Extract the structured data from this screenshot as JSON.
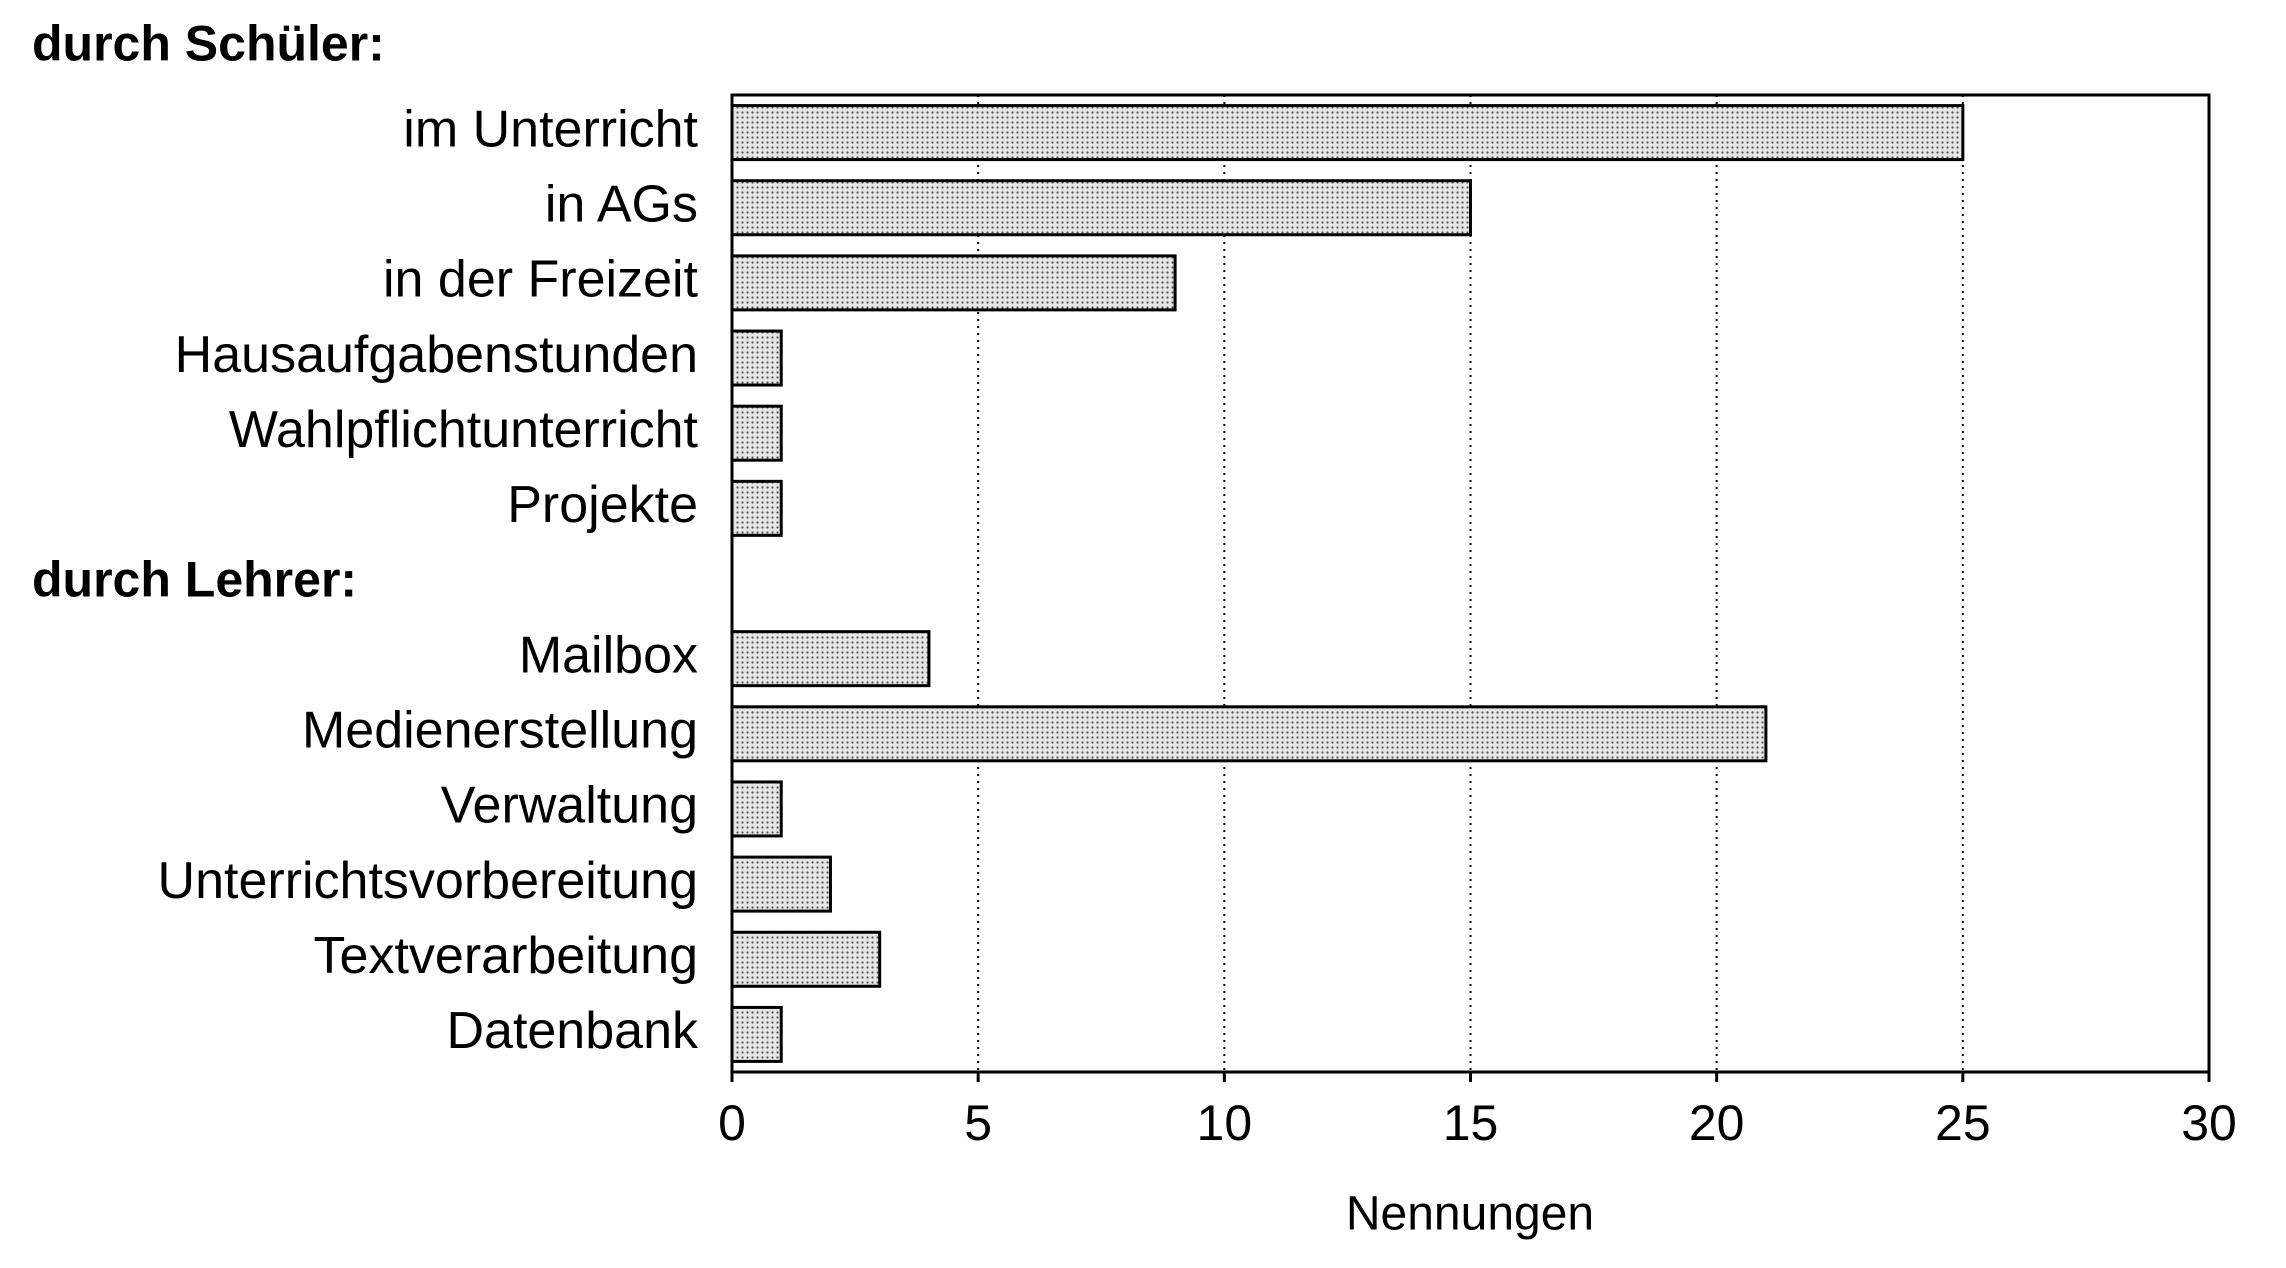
{
  "chart_data": {
    "type": "bar",
    "orientation": "horizontal",
    "groups": [
      {
        "title": "durch Schüler:",
        "categories": [
          "im Unterricht",
          "in AGs",
          "in der Freizeit",
          "Hausaufgabenstunden",
          "Wahlpflichtunterricht",
          "Projekte"
        ],
        "values": [
          25,
          15,
          9,
          1,
          1,
          1
        ]
      },
      {
        "title": "durch Lehrer:",
        "categories": [
          "Mailbox",
          "Medienerstellung",
          "Verwaltung",
          "Unterrichtsvorbereitung",
          "Textverarbeitung",
          "Datenbank"
        ],
        "values": [
          4,
          21,
          1,
          2,
          3,
          1
        ]
      }
    ],
    "color": "#d6d6d6",
    "xlabel": "Nennungen",
    "xlim": [
      0,
      30
    ],
    "xticks": [
      0,
      5,
      10,
      15,
      20,
      25,
      30
    ],
    "grid": true
  }
}
